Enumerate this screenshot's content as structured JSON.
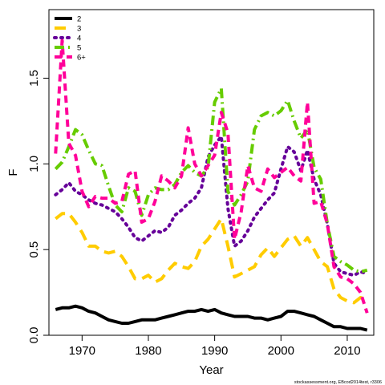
{
  "chart_data": {
    "type": "line",
    "xlabel": "Year",
    "ylabel": "F",
    "xlim": [
      1965,
      2014
    ],
    "ylim": [
      0,
      1.9
    ],
    "x_ticks": [
      1970,
      1980,
      1990,
      2000,
      2010
    ],
    "y_ticks": [
      0.0,
      0.5,
      1.0,
      1.5
    ],
    "x_tick_labels": [
      "1970",
      "1980",
      "1990",
      "2000",
      "2010"
    ],
    "y_tick_labels": [
      "0.0",
      "0.5",
      "1.0",
      "1.5"
    ],
    "grid": false,
    "legend_position": "top-left",
    "credit": "stockassessment.org, EBcod2014test, r3306",
    "x": [
      1966,
      1967,
      1968,
      1969,
      1970,
      1971,
      1972,
      1973,
      1974,
      1975,
      1976,
      1977,
      1978,
      1979,
      1980,
      1981,
      1982,
      1983,
      1984,
      1985,
      1986,
      1987,
      1988,
      1989,
      1990,
      1991,
      1992,
      1993,
      1994,
      1995,
      1996,
      1997,
      1998,
      1999,
      2000,
      2001,
      2002,
      2003,
      2004,
      2005,
      2006,
      2007,
      2008,
      2009,
      2010,
      2011,
      2012,
      2013
    ],
    "series": [
      {
        "name": "2",
        "color": "#000000",
        "dash": "solid",
        "values": [
          0.15,
          0.16,
          0.16,
          0.17,
          0.16,
          0.14,
          0.13,
          0.11,
          0.09,
          0.08,
          0.07,
          0.07,
          0.08,
          0.09,
          0.09,
          0.09,
          0.1,
          0.11,
          0.12,
          0.13,
          0.14,
          0.14,
          0.15,
          0.14,
          0.15,
          0.13,
          0.12,
          0.11,
          0.11,
          0.11,
          0.1,
          0.1,
          0.09,
          0.1,
          0.11,
          0.14,
          0.14,
          0.13,
          0.12,
          0.11,
          0.09,
          0.07,
          0.05,
          0.05,
          0.04,
          0.04,
          0.04,
          0.03
        ]
      },
      {
        "name": "3",
        "color": "#FFCC00",
        "dash": "longdash",
        "values": [
          0.68,
          0.71,
          0.71,
          0.66,
          0.6,
          0.52,
          0.52,
          0.49,
          0.48,
          0.49,
          0.46,
          0.4,
          0.33,
          0.33,
          0.35,
          0.31,
          0.33,
          0.38,
          0.42,
          0.4,
          0.39,
          0.43,
          0.52,
          0.56,
          0.62,
          0.68,
          0.52,
          0.34,
          0.36,
          0.38,
          0.4,
          0.47,
          0.51,
          0.46,
          0.51,
          0.56,
          0.58,
          0.52,
          0.57,
          0.5,
          0.43,
          0.4,
          0.27,
          0.22,
          0.2,
          0.19,
          0.22,
          0.21
        ]
      },
      {
        "name": "4",
        "color": "#660099",
        "dash": "dotted",
        "values": [
          0.82,
          0.85,
          0.89,
          0.84,
          0.82,
          0.79,
          0.77,
          0.76,
          0.74,
          0.72,
          0.68,
          0.63,
          0.57,
          0.55,
          0.58,
          0.61,
          0.6,
          0.63,
          0.7,
          0.73,
          0.77,
          0.8,
          0.86,
          1.04,
          1.11,
          1.16,
          0.74,
          0.52,
          0.55,
          0.61,
          0.69,
          0.74,
          0.79,
          0.83,
          0.97,
          1.1,
          1.07,
          0.96,
          1.08,
          0.91,
          0.82,
          0.65,
          0.42,
          0.37,
          0.36,
          0.35,
          0.37,
          0.36
        ]
      },
      {
        "name": "5",
        "color": "#66CC00",
        "dash": "dashdot",
        "values": [
          0.97,
          1.01,
          1.1,
          1.2,
          1.17,
          1.08,
          1.0,
          0.99,
          0.87,
          0.76,
          0.72,
          0.86,
          0.84,
          0.7,
          0.82,
          0.86,
          0.85,
          0.85,
          0.88,
          0.95,
          0.99,
          0.95,
          0.93,
          0.98,
          1.36,
          1.44,
          0.84,
          0.76,
          0.82,
          0.9,
          1.2,
          1.28,
          1.3,
          1.28,
          1.31,
          1.37,
          1.25,
          1.15,
          1.2,
          0.98,
          0.91,
          0.65,
          0.46,
          0.43,
          0.41,
          0.38,
          0.37,
          0.38
        ]
      },
      {
        "name": "6+",
        "color": "#FF0099",
        "dash": "dashed",
        "values": [
          1.06,
          1.72,
          1.12,
          1.05,
          0.84,
          0.75,
          0.81,
          0.8,
          0.8,
          0.77,
          0.78,
          0.94,
          0.96,
          0.66,
          0.68,
          0.78,
          0.93,
          0.9,
          0.86,
          0.93,
          1.21,
          1.0,
          0.93,
          0.99,
          1.05,
          1.3,
          1.18,
          0.56,
          0.72,
          0.99,
          0.86,
          0.84,
          0.97,
          0.92,
          0.95,
          0.98,
          0.93,
          0.9,
          1.36,
          0.77,
          0.78,
          0.65,
          0.4,
          0.34,
          0.33,
          0.3,
          0.25,
          0.13
        ]
      }
    ]
  }
}
